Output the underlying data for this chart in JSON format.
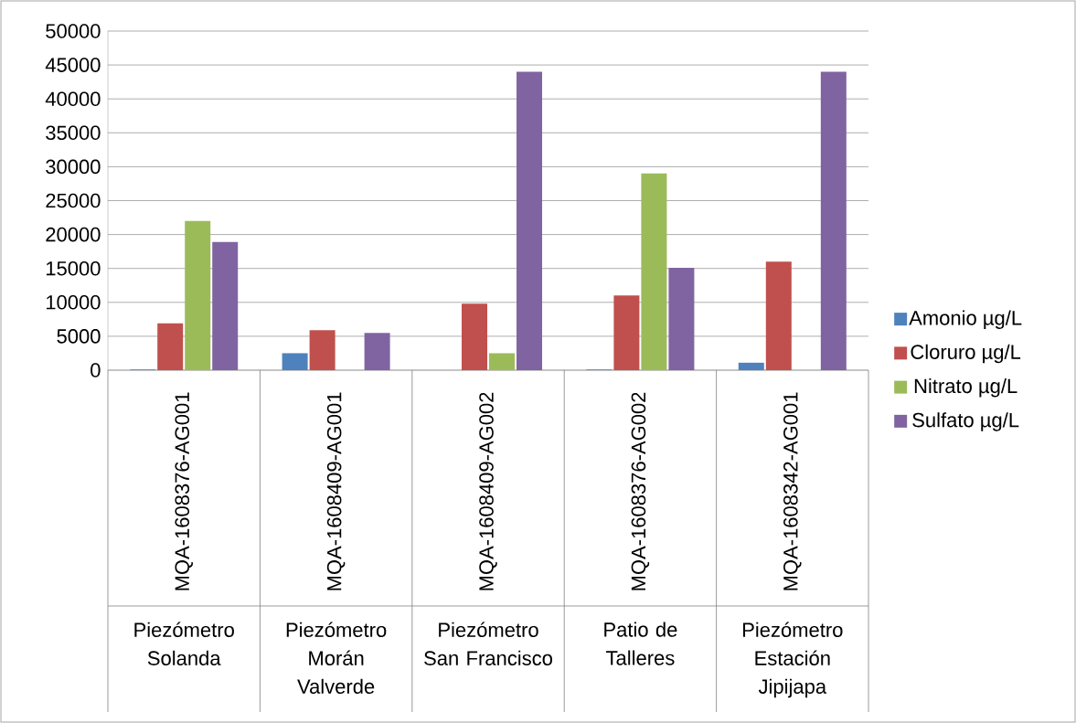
{
  "chart_data": {
    "type": "bar",
    "categories": [
      "MQA-1608376-AG001",
      "MQA-1608409-AG001",
      "MQA-1608409-AG002",
      "MQA-1608376-AG002",
      "MQA-1608342-AG001"
    ],
    "annotations": [
      "Piezómetro Solanda",
      "Piezómetro Morán Valverde",
      "Piezómetro San Francisco",
      "Patio de Talleres",
      "Piezómetro Estación Jipijapa"
    ],
    "series": [
      {
        "name": "Amonio µg/L",
        "color": "#4f81bd",
        "values": [
          100,
          2500,
          null,
          100,
          1100
        ]
      },
      {
        "name": "Cloruro µg/L",
        "color": "#c0504d",
        "values": [
          6900,
          5900,
          9800,
          11000,
          16000
        ]
      },
      {
        "name": "Nitrato µg/L",
        "color": "#9bbb59",
        "values": [
          22000,
          null,
          2500,
          29000,
          null
        ]
      },
      {
        "name": "Sulfato µg/L",
        "color": "#8064a2",
        "values": [
          18900,
          5500,
          44000,
          15100,
          44000
        ]
      }
    ],
    "ylim": [
      0,
      50000
    ],
    "yticks": [
      0,
      5000,
      10000,
      15000,
      20000,
      25000,
      30000,
      35000,
      40000,
      45000,
      50000
    ],
    "grid": "y",
    "legend": "right"
  }
}
